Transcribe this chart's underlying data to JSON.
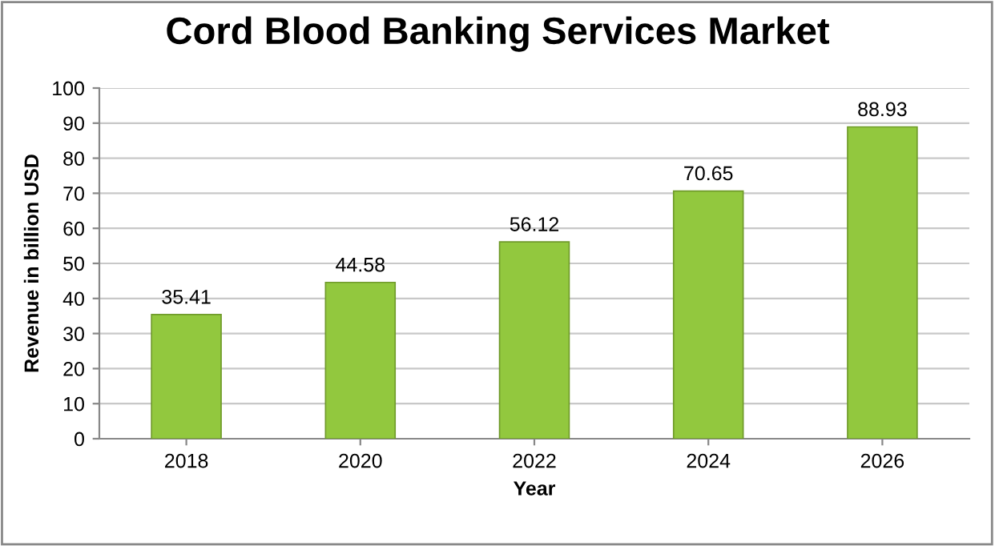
{
  "chart_data": {
    "type": "bar",
    "title": "Cord Blood Banking Services Market",
    "xlabel": "Year",
    "ylabel": "Revenue in billion USD",
    "categories": [
      "2018",
      "2020",
      "2022",
      "2024",
      "2026"
    ],
    "values": [
      35.41,
      44.58,
      56.12,
      70.65,
      88.93
    ],
    "color": "#92c83e",
    "ylim": [
      0,
      100
    ],
    "yticks": [
      0,
      10,
      20,
      30,
      40,
      50,
      60,
      70,
      80,
      90,
      100
    ],
    "grid": "y",
    "data_labels": true
  }
}
